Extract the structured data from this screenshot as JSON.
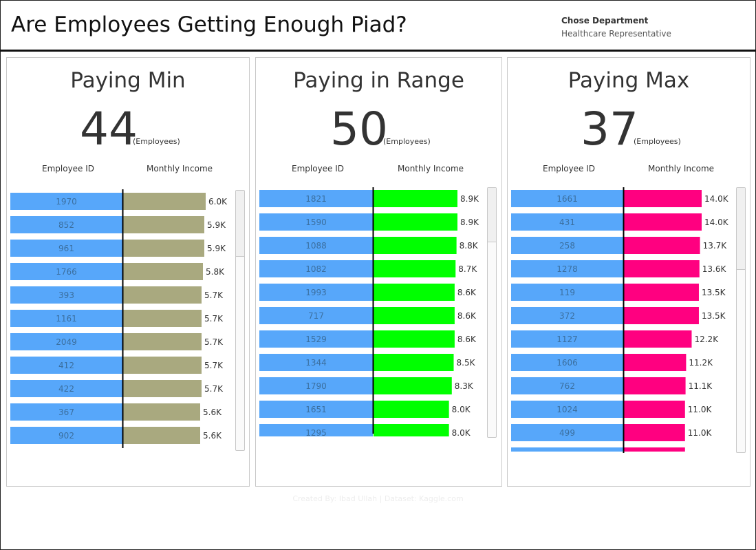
{
  "header": {
    "title": "Are Employees Getting Enough Piad?",
    "filter_label": "Chose Department",
    "filter_value": "Healthcare Representative"
  },
  "footer": {
    "credit": "Created By: Ibad Ullah    |    Dataset: Kaggle.com"
  },
  "colors": {
    "id_bar": "#57a7fa",
    "min_bar": "#a9a97f",
    "range_bar": "#00ff00",
    "max_bar": "#ff0080",
    "divider": "#000000"
  },
  "panels": [
    {
      "title": "Paying Min",
      "kpi": "44",
      "kpi_unit": "(Employees)",
      "col_id": "Employee ID",
      "col_income": "Monthly Income"
    },
    {
      "title": "Paying in Range",
      "kpi": "50",
      "kpi_unit": "(Employees)",
      "col_id": "Employee ID",
      "col_income": "Monthly Income"
    },
    {
      "title": "Paying Max",
      "kpi": "37",
      "kpi_unit": "(Employees)",
      "col_id": "Employee ID",
      "col_income": "Monthly Income"
    }
  ],
  "chart_data": [
    {
      "type": "bar",
      "title": "Paying Min",
      "xlabel": "Monthly Income",
      "ylabel": "Employee ID",
      "categories": [
        "1970",
        "852",
        "961",
        "1766",
        "393",
        "1161",
        "2049",
        "412",
        "422",
        "367",
        "902"
      ],
      "values": [
        6000,
        5900,
        5900,
        5800,
        5700,
        5700,
        5700,
        5700,
        5700,
        5600,
        5600
      ],
      "labels": [
        "6.0K",
        "5.9K",
        "5.9K",
        "5.8K",
        "5.7K",
        "5.7K",
        "5.7K",
        "5.7K",
        "5.7K",
        "5.6K",
        "5.6K"
      ],
      "xlim": [
        0,
        6000
      ],
      "grid": false
    },
    {
      "type": "bar",
      "title": "Paying in Range",
      "xlabel": "Monthly Income",
      "ylabel": "Employee ID",
      "categories": [
        "1821",
        "1590",
        "1088",
        "1082",
        "1993",
        "717",
        "1529",
        "1344",
        "1790",
        "1651",
        "1295"
      ],
      "values": [
        8900,
        8900,
        8800,
        8700,
        8600,
        8600,
        8600,
        8500,
        8300,
        8000,
        8000
      ],
      "labels": [
        "8.9K",
        "8.9K",
        "8.8K",
        "8.7K",
        "8.6K",
        "8.6K",
        "8.6K",
        "8.5K",
        "8.3K",
        "8.0K",
        "8.0K"
      ],
      "xlim": [
        0,
        8900
      ],
      "grid": false
    },
    {
      "type": "bar",
      "title": "Paying Max",
      "xlabel": "Monthly Income",
      "ylabel": "Employee ID",
      "categories": [
        "1661",
        "431",
        "258",
        "1278",
        "119",
        "372",
        "1127",
        "1606",
        "762",
        "1024",
        "499"
      ],
      "values": [
        14000,
        14000,
        13700,
        13600,
        13500,
        13500,
        12200,
        11200,
        11100,
        11000,
        11000
      ],
      "labels": [
        "14.0K",
        "14.0K",
        "13.7K",
        "13.6K",
        "13.5K",
        "13.5K",
        "12.2K",
        "11.2K",
        "11.1K",
        "11.0K",
        "11.0K"
      ],
      "xlim": [
        0,
        14000
      ],
      "grid": false
    }
  ]
}
